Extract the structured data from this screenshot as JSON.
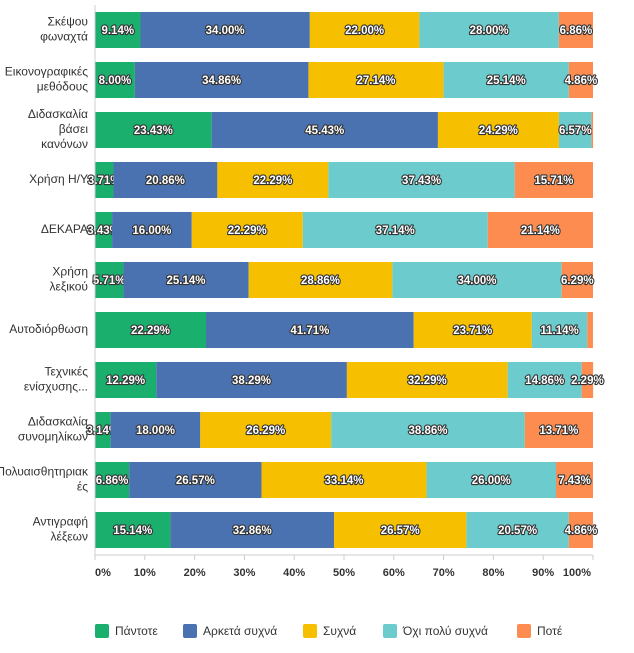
{
  "chart_data": {
    "type": "stacked_barh",
    "categories": [
      [
        "Σκέψου",
        "φωναχτά"
      ],
      [
        "Εικονογραφικές",
        "μεθόδους"
      ],
      [
        "Διδασκαλία",
        "βάσει",
        "κανόνων"
      ],
      [
        "Χρήση Η/Υ"
      ],
      [
        "ΔΕΚΑΡΑ"
      ],
      [
        "Χρήση",
        "λεξικού"
      ],
      [
        "Αυτοδιόρθωση"
      ],
      [
        "Τεχνικές",
        "ενίσχυσης..."
      ],
      [
        "Διδασκαλία",
        "συνομηλίκων"
      ],
      [
        "Πολυαισθητηριακ",
        "ές"
      ],
      [
        "Αντιγραφή",
        "λέξεων"
      ]
    ],
    "series": [
      {
        "name": "Πάντοτε",
        "color": "#1aaf6c",
        "values": [
          9.14,
          8.0,
          23.43,
          3.71,
          3.43,
          5.71,
          22.29,
          12.29,
          3.14,
          6.86,
          15.14
        ],
        "value_labels": [
          "9.14%",
          "8.00%",
          "23.43%",
          "3.71%",
          "3.43%",
          "5.71%",
          "22.29%",
          "12.29%",
          "3.14%",
          "6.86%",
          "15.14%"
        ]
      },
      {
        "name": "Αρκετά συχνά",
        "color": "#4a72b0",
        "values": [
          34.0,
          34.86,
          45.43,
          20.86,
          16.0,
          25.14,
          41.71,
          38.29,
          18.0,
          26.57,
          32.86
        ],
        "value_labels": [
          "34.00%",
          "34.86%",
          "45.43%",
          "20.86%",
          "16.00%",
          "25.14%",
          "41.71%",
          "38.29%",
          "18.00%",
          "26.57%",
          "32.86%"
        ]
      },
      {
        "name": "Συχνά",
        "color": "#f6bf00",
        "values": [
          22.0,
          27.14,
          24.29,
          22.29,
          22.29,
          28.86,
          23.71,
          32.29,
          26.29,
          33.14,
          26.57
        ],
        "value_labels": [
          "22.00%",
          "27.14%",
          "24.29%",
          "22.29%",
          "22.29%",
          "28.86%",
          "23.71%",
          "32.29%",
          "26.29%",
          "33.14%",
          "26.57%"
        ]
      },
      {
        "name": "Όχι πολύ συχνά",
        "color": "#6ccbcc",
        "values": [
          28.0,
          25.14,
          6.57,
          37.43,
          37.14,
          34.0,
          11.14,
          14.86,
          38.86,
          26.0,
          20.57
        ],
        "value_labels": [
          "28.00%",
          "25.14%",
          "6.57%",
          "37.43%",
          "37.14%",
          "34.00%",
          "11.14%",
          "14.86%",
          "38.86%",
          "26.00%",
          "20.57%"
        ]
      },
      {
        "name": "Ποτέ",
        "color": "#fd8c50",
        "values": [
          6.86,
          4.86,
          0.29,
          15.71,
          21.14,
          6.29,
          1.14,
          2.29,
          13.71,
          7.43,
          4.86
        ],
        "value_labels": [
          "6.86%",
          "4.86%",
          null,
          "15.71%",
          "21.14%",
          "6.29%",
          null,
          "2.29%",
          "13.71%",
          "7.43%",
          "4.86%"
        ]
      }
    ],
    "xlim": [
      0,
      100
    ],
    "xticks": [
      {
        "value": 0,
        "label": "0%"
      },
      {
        "value": 10,
        "label": "10%"
      },
      {
        "value": 20,
        "label": "20%"
      },
      {
        "value": 30,
        "label": "30%"
      },
      {
        "value": 40,
        "label": "40%"
      },
      {
        "value": 50,
        "label": "50%"
      },
      {
        "value": 60,
        "label": "60%"
      },
      {
        "value": 70,
        "label": "70%"
      },
      {
        "value": 80,
        "label": "80%"
      },
      {
        "value": 90,
        "label": "90%"
      },
      {
        "value": 100,
        "label": "100%"
      }
    ],
    "legend": "bottom"
  }
}
